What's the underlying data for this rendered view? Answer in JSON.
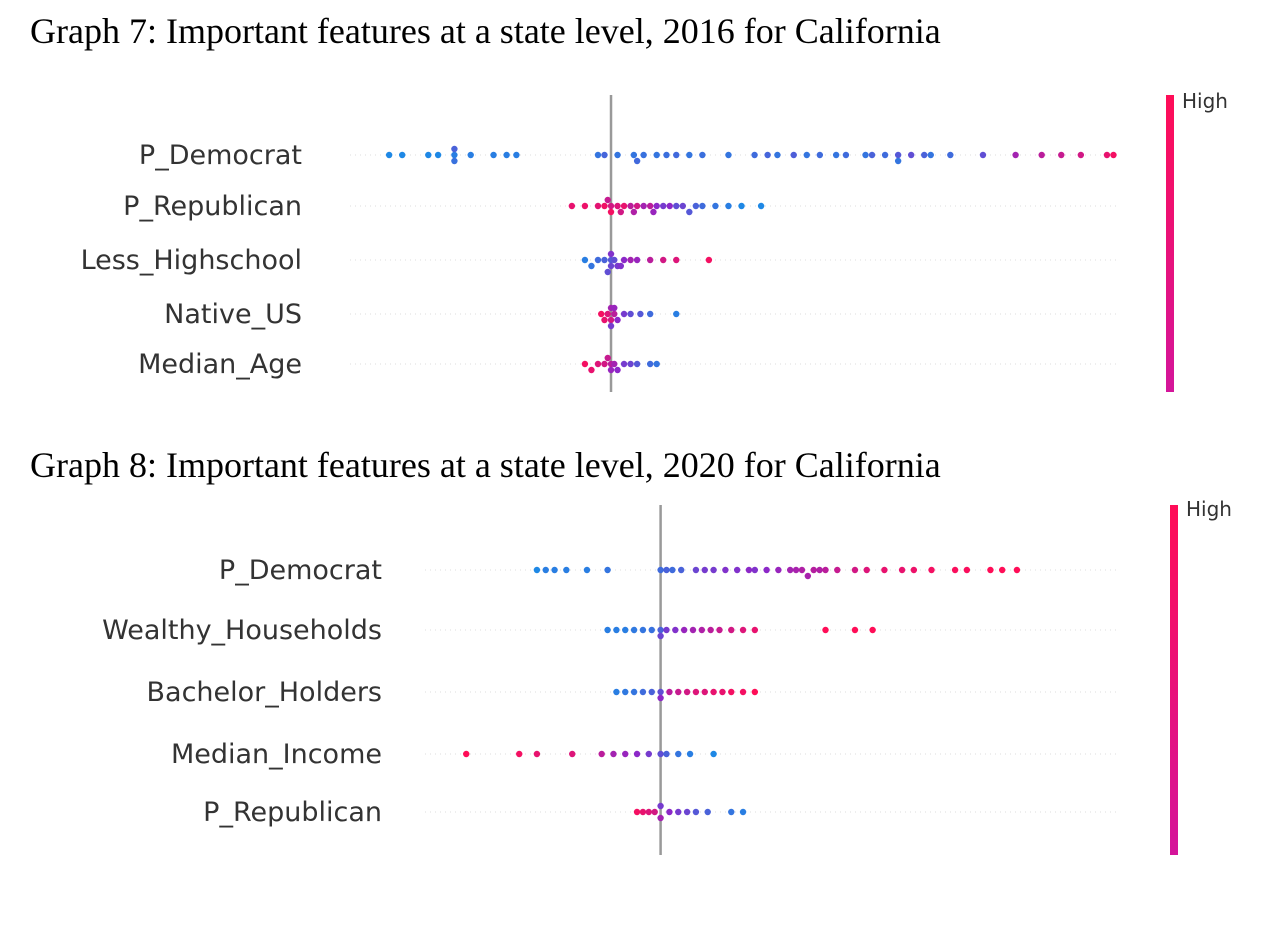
{
  "titles": {
    "graph7": "Graph 7: Important features at a state level, 2016 for California",
    "graph8": "Graph 8: Important features at a state level, 2020 for California"
  },
  "colorbar_label": "High",
  "colors": {
    "low": "#1e88e5",
    "high": "#ff0d57",
    "axis": "#999999",
    "row_dots": "#dddddd"
  },
  "chart_data": [
    {
      "type": "scatter",
      "subtype": "beeswarm",
      "features": [
        "P_Democrat",
        "P_Republican",
        "Less_Highschool",
        "Native_US",
        "Median_Age"
      ],
      "xlim": [
        -0.04,
        0.078
      ],
      "zero_line": 0,
      "color_scale_labels": [
        "High"
      ],
      "points": [
        [
          [
            -0.034,
            0.0
          ],
          [
            -0.032,
            0.0
          ],
          [
            -0.028,
            0.0
          ],
          [
            -0.0265,
            0.0
          ],
          [
            -0.024,
            0.05
          ],
          [
            -0.024,
            0.12
          ],
          [
            -0.024,
            0.2
          ],
          [
            -0.0215,
            0.05
          ],
          [
            -0.018,
            0.05
          ],
          [
            -0.016,
            0.05
          ],
          [
            -0.0145,
            0.05
          ],
          [
            -0.002,
            0.1
          ],
          [
            -0.001,
            0.18
          ],
          [
            0.001,
            0.1
          ],
          [
            0.0035,
            0.1
          ],
          [
            0.004,
            0.16
          ],
          [
            0.005,
            0.12
          ],
          [
            0.007,
            0.1
          ],
          [
            0.0085,
            0.13
          ],
          [
            0.01,
            0.16
          ],
          [
            0.012,
            0.1
          ],
          [
            0.014,
            0.13
          ],
          [
            0.018,
            0.1
          ],
          [
            0.022,
            0.15
          ],
          [
            0.024,
            0.18
          ],
          [
            0.0255,
            0.1
          ],
          [
            0.028,
            0.22
          ],
          [
            0.03,
            0.1
          ],
          [
            0.032,
            0.15
          ],
          [
            0.0345,
            0.1
          ],
          [
            0.036,
            0.15
          ],
          [
            0.039,
            0.1
          ],
          [
            0.04,
            0.2
          ],
          [
            0.042,
            0.15
          ],
          [
            0.044,
            0.25
          ],
          [
            0.044,
            0.1
          ],
          [
            0.046,
            0.3
          ],
          [
            0.048,
            0.2
          ],
          [
            0.049,
            0.1
          ],
          [
            0.052,
            0.15
          ],
          [
            0.057,
            0.3
          ],
          [
            0.062,
            0.6
          ],
          [
            0.066,
            0.7
          ],
          [
            0.069,
            0.75
          ],
          [
            0.072,
            0.8
          ],
          [
            0.076,
            0.9
          ],
          [
            0.077,
            0.95
          ]
        ],
        [
          [
            -0.006,
            0.9
          ],
          [
            -0.004,
            0.92
          ],
          [
            -0.002,
            0.88
          ],
          [
            -0.001,
            0.94
          ],
          [
            0.0,
            0.8
          ],
          [
            0.0,
            0.95
          ],
          [
            0.001,
            0.85
          ],
          [
            0.002,
            0.9
          ],
          [
            0.003,
            0.7
          ],
          [
            0.004,
            0.8
          ],
          [
            0.005,
            0.6
          ],
          [
            0.006,
            0.7
          ],
          [
            0.007,
            0.5
          ],
          [
            0.008,
            0.4
          ],
          [
            0.009,
            0.5
          ],
          [
            0.01,
            0.3
          ],
          [
            0.011,
            0.35
          ],
          [
            0.012,
            0.25
          ],
          [
            0.013,
            0.2
          ],
          [
            0.014,
            0.15
          ],
          [
            0.016,
            0.1
          ],
          [
            0.018,
            0.05
          ],
          [
            0.02,
            0.0
          ],
          [
            0.023,
            0.0
          ],
          [
            -0.0005,
            0.75
          ],
          [
            0.0015,
            0.8
          ],
          [
            0.0035,
            0.65
          ],
          [
            0.0065,
            0.55
          ]
        ],
        [
          [
            -0.004,
            0.05
          ],
          [
            -0.003,
            0.1
          ],
          [
            -0.002,
            0.15
          ],
          [
            -0.001,
            0.2
          ],
          [
            0.0,
            0.25
          ],
          [
            0.0,
            0.35
          ],
          [
            0.0,
            0.45
          ],
          [
            0.0005,
            0.3
          ],
          [
            0.001,
            0.4
          ],
          [
            0.002,
            0.5
          ],
          [
            0.003,
            0.6
          ],
          [
            0.004,
            0.55
          ],
          [
            0.006,
            0.7
          ],
          [
            0.008,
            0.8
          ],
          [
            0.01,
            0.85
          ],
          [
            0.015,
            0.95
          ],
          [
            -0.0005,
            0.3
          ],
          [
            0.0015,
            0.45
          ]
        ],
        [
          [
            -0.0015,
            0.95
          ],
          [
            -0.001,
            0.9
          ],
          [
            -0.0005,
            0.85
          ],
          [
            0.0,
            0.8
          ],
          [
            0.0,
            0.6
          ],
          [
            0.0,
            0.4
          ],
          [
            0.0005,
            0.7
          ],
          [
            0.001,
            0.5
          ],
          [
            0.002,
            0.4
          ],
          [
            0.003,
            0.3
          ],
          [
            0.0045,
            0.25
          ],
          [
            0.006,
            0.15
          ],
          [
            0.01,
            0.05
          ],
          [
            0.0005,
            0.55
          ]
        ],
        [
          [
            -0.004,
            0.95
          ],
          [
            -0.003,
            0.9
          ],
          [
            -0.002,
            0.85
          ],
          [
            -0.001,
            0.8
          ],
          [
            0.0,
            0.7
          ],
          [
            0.0,
            0.55
          ],
          [
            0.0005,
            0.6
          ],
          [
            0.001,
            0.5
          ],
          [
            0.002,
            0.4
          ],
          [
            0.003,
            0.35
          ],
          [
            0.004,
            0.25
          ],
          [
            0.006,
            0.15
          ],
          [
            0.007,
            0.1
          ],
          [
            -0.0005,
            0.75
          ]
        ]
      ]
    },
    {
      "type": "scatter",
      "subtype": "beeswarm",
      "features": [
        "P_Democrat",
        "Wealthy_Households",
        "Bachelor_Holders",
        "Median_Income",
        "P_Republican"
      ],
      "xlim": [
        -0.04,
        0.078
      ],
      "zero_line": 0,
      "color_scale_labels": [
        "High"
      ],
      "points": [
        [
          [
            -0.021,
            0.0
          ],
          [
            -0.0195,
            0.05
          ],
          [
            -0.018,
            0.05
          ],
          [
            -0.016,
            0.05
          ],
          [
            -0.0125,
            0.05
          ],
          [
            -0.009,
            0.1
          ],
          [
            0.0,
            0.15
          ],
          [
            0.001,
            0.2
          ],
          [
            0.002,
            0.15
          ],
          [
            0.0035,
            0.2
          ],
          [
            0.006,
            0.35
          ],
          [
            0.0075,
            0.4
          ],
          [
            0.009,
            0.4
          ],
          [
            0.011,
            0.45
          ],
          [
            0.013,
            0.45
          ],
          [
            0.015,
            0.5
          ],
          [
            0.016,
            0.45
          ],
          [
            0.018,
            0.5
          ],
          [
            0.02,
            0.55
          ],
          [
            0.022,
            0.6
          ],
          [
            0.023,
            0.62
          ],
          [
            0.024,
            0.65
          ],
          [
            0.025,
            0.62
          ],
          [
            0.026,
            0.68
          ],
          [
            0.027,
            0.65
          ],
          [
            0.028,
            0.7
          ],
          [
            0.03,
            0.75
          ],
          [
            0.033,
            0.8
          ],
          [
            0.035,
            0.85
          ],
          [
            0.038,
            0.9
          ],
          [
            0.041,
            0.9
          ],
          [
            0.043,
            0.92
          ],
          [
            0.046,
            0.95
          ],
          [
            0.05,
            0.98
          ],
          [
            0.052,
            0.98
          ],
          [
            0.056,
            1.0
          ],
          [
            0.058,
            1.0
          ],
          [
            0.0605,
            1.0
          ]
        ],
        [
          [
            -0.009,
            0.05
          ],
          [
            -0.0075,
            0.05
          ],
          [
            -0.006,
            0.05
          ],
          [
            -0.0045,
            0.08
          ],
          [
            -0.003,
            0.1
          ],
          [
            -0.0015,
            0.12
          ],
          [
            0.0,
            0.2
          ],
          [
            0.0,
            0.35
          ],
          [
            0.001,
            0.4
          ],
          [
            0.0025,
            0.45
          ],
          [
            0.004,
            0.55
          ],
          [
            0.0055,
            0.6
          ],
          [
            0.007,
            0.65
          ],
          [
            0.0085,
            0.7
          ],
          [
            0.01,
            0.75
          ],
          [
            0.012,
            0.8
          ],
          [
            0.014,
            0.85
          ],
          [
            0.016,
            0.9
          ],
          [
            0.028,
            1.0
          ],
          [
            0.033,
            1.0
          ],
          [
            0.036,
            1.0
          ]
        ],
        [
          [
            -0.0075,
            0.05
          ],
          [
            -0.006,
            0.08
          ],
          [
            -0.0045,
            0.1
          ],
          [
            -0.003,
            0.15
          ],
          [
            -0.0015,
            0.2
          ],
          [
            0.0,
            0.3
          ],
          [
            0.0,
            0.5
          ],
          [
            0.0015,
            0.7
          ],
          [
            0.003,
            0.75
          ],
          [
            0.0045,
            0.8
          ],
          [
            0.006,
            0.85
          ],
          [
            0.0075,
            0.85
          ],
          [
            0.009,
            0.9
          ],
          [
            0.0105,
            0.9
          ],
          [
            0.012,
            0.95
          ],
          [
            0.014,
            0.95
          ],
          [
            0.016,
            1.0
          ]
        ],
        [
          [
            -0.033,
            1.0
          ],
          [
            -0.024,
            0.95
          ],
          [
            -0.021,
            0.9
          ],
          [
            -0.015,
            0.85
          ],
          [
            -0.01,
            0.7
          ],
          [
            -0.008,
            0.6
          ],
          [
            -0.006,
            0.55
          ],
          [
            -0.004,
            0.5
          ],
          [
            -0.002,
            0.4
          ],
          [
            0.0,
            0.3
          ],
          [
            0.001,
            0.2
          ],
          [
            0.003,
            0.1
          ],
          [
            0.005,
            0.05
          ],
          [
            0.009,
            0.0
          ]
        ],
        [
          [
            -0.004,
            0.95
          ],
          [
            -0.003,
            0.9
          ],
          [
            -0.002,
            0.85
          ],
          [
            -0.001,
            0.8
          ],
          [
            0.0,
            0.6
          ],
          [
            0.0,
            0.4
          ],
          [
            0.0015,
            0.5
          ],
          [
            0.003,
            0.4
          ],
          [
            0.0045,
            0.35
          ],
          [
            0.006,
            0.25
          ],
          [
            0.008,
            0.2
          ],
          [
            0.012,
            0.1
          ],
          [
            0.014,
            0.05
          ]
        ]
      ]
    }
  ]
}
